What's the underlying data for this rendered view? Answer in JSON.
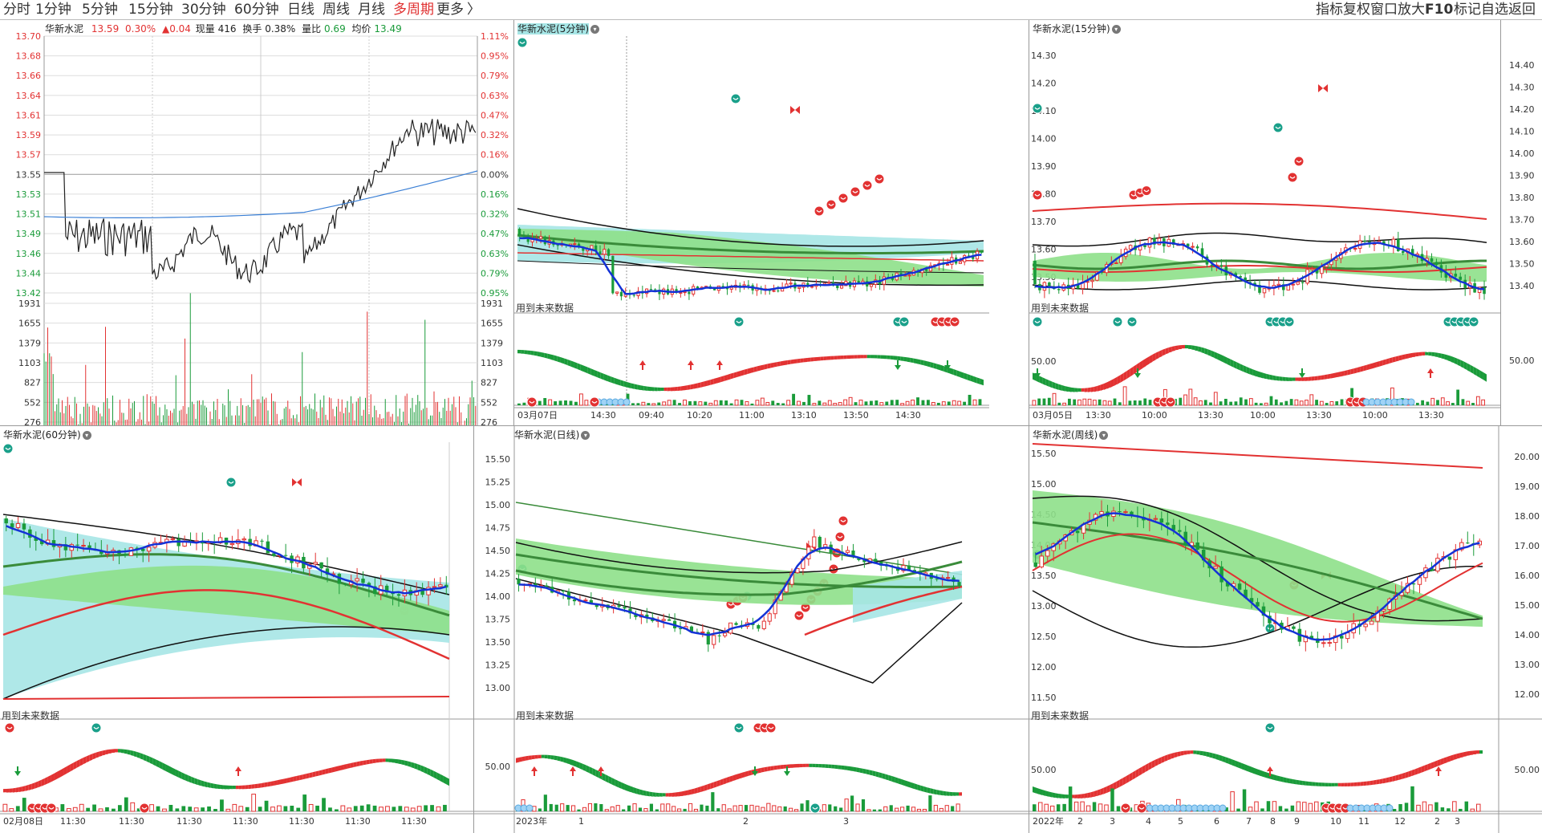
{
  "toolbar": {
    "periods": [
      "分时",
      "1分钟",
      "5分钟",
      "15分钟",
      "30分钟",
      "60分钟",
      "日线",
      "周线",
      "月线",
      "多周期",
      "更多"
    ],
    "active": "多周期",
    "more_arrow": "〉",
    "right": [
      "指标",
      "复权",
      "窗口",
      "放大",
      "F10",
      "标记",
      "自选",
      "返回"
    ]
  },
  "colors": {
    "up": "#e23232",
    "down": "#1a9b3a",
    "ma_blue": "#1432d6",
    "band_green": "#8ee08a",
    "band_cyan": "#a6e6e6",
    "red_line": "#e01010"
  },
  "intraday": {
    "stock_name": "华新水泥",
    "price": "13.59",
    "change_pct": "0.30%",
    "change": "▲0.04",
    "volume_label": "现量",
    "volume": "416",
    "turnover_label": "换手",
    "turnover": "0.38%",
    "ratio_label": "量比",
    "ratio": "0.69",
    "avg_label": "均价",
    "avg": "13.49",
    "price_ticks": [
      "13.70",
      "13.68",
      "13.66",
      "13.64",
      "13.61",
      "13.59",
      "13.57",
      "13.55",
      "13.53",
      "13.51",
      "13.49",
      "13.46",
      "13.44",
      "13.42"
    ],
    "pct_ticks": [
      "1.11%",
      "0.95%",
      "0.79%",
      "0.63%",
      "0.47%",
      "0.32%",
      "0.16%",
      "0.00%",
      "0.16%",
      "0.32%",
      "0.47%",
      "0.63%",
      "0.79%",
      "0.95%"
    ],
    "vol_ticks": [
      "1931",
      "1655",
      "1379",
      "1103",
      "827",
      "552",
      "276"
    ]
  },
  "panels": {
    "p5": {
      "title": "华新水泥(5分钟)",
      "future": "用到未来数据",
      "x_ticks": [
        "03月07日",
        "14:30",
        "09:40",
        "10:20",
        "11:00",
        "13:10",
        "13:50",
        "14:30"
      ],
      "osc_label": ""
    },
    "p15": {
      "title": "华新水泥(15分钟)",
      "future": "用到未来数据",
      "y_ticks": [
        "14.30",
        "14.20",
        "14.10",
        "14.00",
        "13.90",
        "13.80",
        "13.70",
        "13.60",
        "13.50"
      ],
      "y_ticks_right": [
        "14.40",
        "14.30",
        "14.20",
        "14.10",
        "14.00",
        "13.90",
        "13.80",
        "13.70",
        "13.60",
        "13.50",
        "13.40"
      ],
      "osc_label": "50.00",
      "x_ticks": [
        "03月05日",
        "13:30",
        "10:00",
        "13:30",
        "10:00",
        "13:30",
        "10:00",
        "13:30"
      ]
    },
    "p60": {
      "title": "华新水泥(60分钟)",
      "future": "用到未来数据",
      "x_ticks": [
        "02月08日",
        "11:30",
        "11:30",
        "11:30",
        "11:30",
        "11:30",
        "11:30",
        "11:30"
      ]
    },
    "pday": {
      "title": "华新水泥(日线)",
      "future": "用到未来数据",
      "y_ticks": [
        "15.50",
        "15.25",
        "15.00",
        "14.75",
        "14.50",
        "14.25",
        "14.00",
        "13.75",
        "13.50",
        "13.25",
        "13.00"
      ],
      "osc_label": "50.00",
      "x_ticks": [
        "2023年",
        "1",
        "2",
        "3"
      ]
    },
    "pweek": {
      "title": "华新水泥(周线)",
      "future": "用到未来数据",
      "y_ticks": [
        "15.50",
        "15.00",
        "14.50",
        "14.00",
        "13.50",
        "13.00",
        "12.50",
        "12.00",
        "11.50"
      ],
      "y_ticks_right": [
        "20.00",
        "19.00",
        "18.00",
        "17.00",
        "16.00",
        "15.00",
        "14.00",
        "13.00",
        "12.00"
      ],
      "osc_label": "50.00",
      "osc_label_right": "50.00",
      "x_ticks": [
        "2022年",
        "2",
        "3",
        "4",
        "5",
        "6",
        "7",
        "8",
        "9",
        "10",
        "11",
        "12",
        "2",
        "3"
      ]
    }
  },
  "right_axis_main": {
    "osc_label": "50.00"
  }
}
